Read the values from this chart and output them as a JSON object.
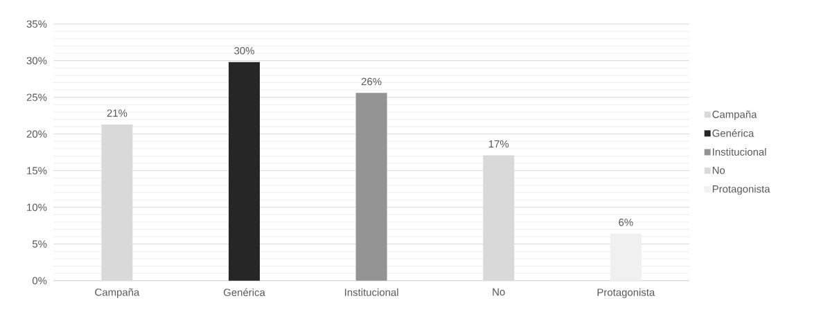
{
  "chart_data": {
    "type": "bar",
    "categories": [
      "Campaña",
      "Genérica",
      "Institucional",
      "No",
      "Protagonista"
    ],
    "series": [
      {
        "name": "Campaña",
        "color": "#d9d9d9",
        "values": [
          21.3,
          null,
          null,
          null,
          null
        ],
        "value_labels": [
          "21%",
          null,
          null,
          null,
          null
        ]
      },
      {
        "name": "Genérica",
        "color": "#262626",
        "values": [
          null,
          29.8,
          null,
          null,
          null
        ],
        "value_labels": [
          null,
          "30%",
          null,
          null,
          null
        ]
      },
      {
        "name": "Institucional",
        "color": "#949494",
        "values": [
          null,
          null,
          25.6,
          null,
          null
        ],
        "value_labels": [
          null,
          null,
          "26%",
          null,
          null
        ]
      },
      {
        "name": "No",
        "color": "#d9d9d9",
        "values": [
          null,
          null,
          null,
          17.1,
          null
        ],
        "value_labels": [
          null,
          null,
          null,
          "17%",
          null
        ]
      },
      {
        "name": "Protagonista",
        "color": "#f0f0f0",
        "values": [
          null,
          null,
          null,
          null,
          6.4
        ],
        "value_labels": [
          null,
          null,
          null,
          null,
          "6%"
        ]
      }
    ],
    "ylim": [
      0,
      35
    ],
    "yticks": [
      {
        "value": 0,
        "label": "0%"
      },
      {
        "value": 5,
        "label": "5%"
      },
      {
        "value": 10,
        "label": "10%"
      },
      {
        "value": 15,
        "label": "15%"
      },
      {
        "value": 20,
        "label": "20%"
      },
      {
        "value": 25,
        "label": "25%"
      },
      {
        "value": 30,
        "label": "30%"
      },
      {
        "value": 35,
        "label": "35%"
      }
    ],
    "grid": true,
    "legend": "right"
  }
}
